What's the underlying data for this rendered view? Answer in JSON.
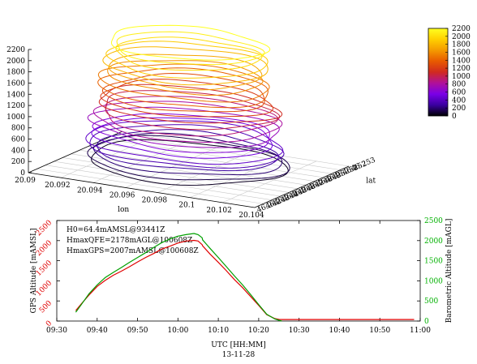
{
  "chart_data": [
    {
      "type": "line",
      "subtype": "3d-contour-surface",
      "xlabel": "lon",
      "ylabel": "lat",
      "x_ticks": [
        "20.09",
        "20.092",
        "20.094",
        "20.096",
        "20.098",
        "20.1",
        "20.102",
        "20.104"
      ],
      "y_ticks": [
        "46.242",
        "46.243",
        "46.244",
        "46.245",
        "46.246",
        "46.247",
        "46.248",
        "46.249",
        "46.25",
        "46.251",
        "46.252",
        "46.253"
      ],
      "z_ticks": [
        "0",
        "200",
        "400",
        "600",
        "800",
        "1000",
        "1200",
        "1400",
        "1600",
        "1800",
        "2000",
        "2200"
      ],
      "xlim": [
        20.09,
        20.104
      ],
      "ylim": [
        46.242,
        46.253
      ],
      "zlim": [
        0,
        2200
      ],
      "contour_levels": [
        60,
        130,
        200,
        280,
        360,
        440,
        520,
        600,
        700,
        800,
        900,
        1000,
        1100,
        1200,
        1300,
        1400,
        1500,
        1600,
        1700,
        1800,
        1900,
        2000,
        2100,
        2200
      ],
      "grid": true,
      "colorbar": {
        "ticks": [
          "2200",
          "2000",
          "1800",
          "1600",
          "1400",
          "1200",
          "1000",
          "800",
          "600",
          "400",
          "200",
          "0"
        ],
        "range": [
          0,
          2200
        ],
        "stops": [
          "#000000",
          "#3a00a0",
          "#7a00e8",
          "#b0109a",
          "#d02a20",
          "#e85a00",
          "#f49a00",
          "#ffd000",
          "#ffff20"
        ]
      }
    },
    {
      "type": "line",
      "xlabel": "UTC [HH:MM]",
      "xlabel2": "13-11-28",
      "ylabel": "GPS Altitude [mAMSL]",
      "ylabel2": "Barometric Altitude [mAGL]",
      "x_ticks": [
        "09:30",
        "09:40",
        "09:50",
        "10:00",
        "10:10",
        "10:20",
        "10:30",
        "10:40",
        "10:50",
        "11:00"
      ],
      "xlim_minutes": [
        0,
        90
      ],
      "y_ticks_left": [
        "0",
        "500",
        "1000",
        "1500",
        "2000",
        "2500"
      ],
      "y_ticks_right": [
        "0",
        "500",
        "1000",
        "1500",
        "2000",
        "2500"
      ],
      "ylim": [
        0,
        2500
      ],
      "annotations": [
        "H0=64.4mAMSL@93441Z",
        "HmaxQFE=2178mAGL@100608Z",
        "HmaxGPS=2007mAMSL@100608Z"
      ],
      "series": [
        {
          "color": "#e00000",
          "x_minutes": [
            4.7,
            6,
            8,
            10,
            12,
            14,
            16,
            18,
            20,
            22,
            24,
            26,
            28,
            30,
            32,
            34,
            35,
            36,
            36.1,
            38,
            40,
            42,
            44,
            46,
            48,
            50,
            52,
            54,
            55,
            55.7,
            56,
            58,
            60,
            62,
            64,
            66,
            70,
            75,
            80,
            85,
            88.5
          ],
          "values": [
            260,
            420,
            650,
            860,
            1010,
            1140,
            1240,
            1350,
            1470,
            1580,
            1680,
            1790,
            1860,
            1940,
            1990,
            2007,
            1990,
            1900,
            1870,
            1660,
            1460,
            1250,
            1030,
            830,
            610,
            390,
            160,
            60,
            40,
            38,
            38,
            38,
            38,
            38,
            38,
            38,
            38,
            38,
            38,
            38,
            38
          ]
        },
        {
          "color": "#00a000",
          "x_minutes": [
            4.7,
            6,
            8,
            10,
            12,
            14,
            16,
            18,
            20,
            22,
            24,
            26,
            28,
            30,
            32,
            34,
            35,
            36,
            36.1,
            38,
            40,
            42,
            44,
            46,
            48,
            50,
            52,
            54,
            55,
            55.7
          ],
          "values": [
            220,
            400,
            680,
            900,
            1080,
            1210,
            1330,
            1460,
            1580,
            1700,
            1830,
            1950,
            2040,
            2110,
            2150,
            2178,
            2150,
            2070,
            2020,
            1800,
            1580,
            1350,
            1120,
            900,
            660,
            410,
            170,
            50,
            20,
            0
          ]
        }
      ]
    }
  ]
}
